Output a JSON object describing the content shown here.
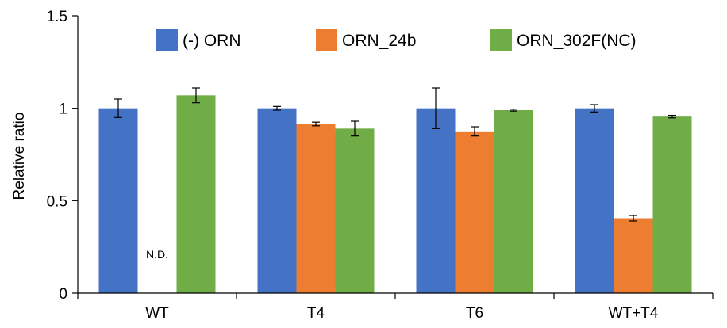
{
  "chart_data": {
    "type": "bar",
    "title": "",
    "xlabel": "",
    "ylabel": "Relative ratio",
    "ylim": [
      0,
      1.5
    ],
    "yticks": [
      "0",
      "0.5",
      "1",
      "1.5"
    ],
    "ytick_values": [
      0,
      0.5,
      1,
      1.5
    ],
    "categories": [
      "WT",
      "T4",
      "T6",
      "WT+T4"
    ],
    "grid": false,
    "legend_position": "top",
    "series": [
      {
        "name": "(-) ORN",
        "color": "#4472c4",
        "values": [
          1.0,
          1.0,
          1.0,
          1.0
        ],
        "errors": [
          0.05,
          0.01,
          0.11,
          0.02
        ]
      },
      {
        "name": "ORN_24b",
        "color": "#ed7d31",
        "values": [
          null,
          0.915,
          0.875,
          0.405
        ],
        "errors": [
          null,
          0.01,
          0.025,
          0.015
        ]
      },
      {
        "name": "ORN_302F(NC)",
        "color": "#70ad47",
        "values": [
          1.07,
          0.89,
          0.99,
          0.955
        ],
        "errors": [
          0.04,
          0.04,
          0.005,
          0.007
        ]
      }
    ],
    "annotations": [
      {
        "text": "N.D.",
        "category": "WT",
        "series": "ORN_24b"
      }
    ]
  }
}
